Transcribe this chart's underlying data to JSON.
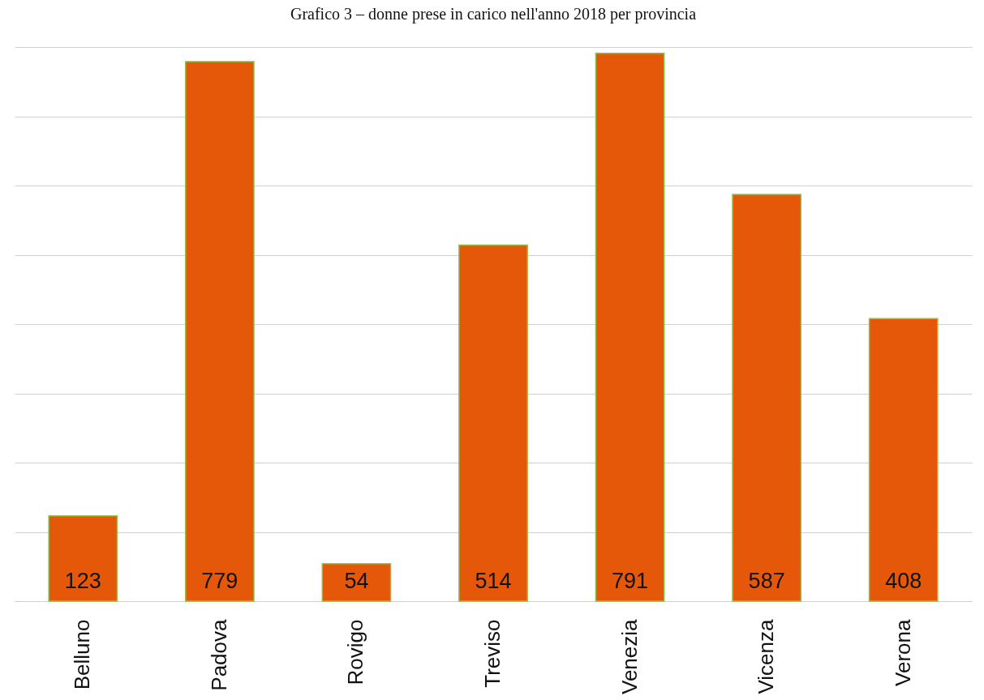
{
  "chart_data": {
    "type": "bar",
    "title": "Grafico 3 – donne prese in carico nell'anno 2018 per provincia",
    "categories": [
      "Belluno",
      "Padova",
      "Rovigo",
      "Treviso",
      "Venezia",
      "Vicenza",
      "Verona"
    ],
    "values": [
      123,
      779,
      54,
      514,
      791,
      587,
      408
    ],
    "color": "#e5580a",
    "data_labels": true,
    "grid": "y",
    "tick_labels": "x",
    "ylim": [
      0,
      800
    ],
    "yticks": [
      {
        "value": 0,
        "label": null
      },
      {
        "value": 100,
        "label": null
      },
      {
        "value": 200,
        "label": null
      },
      {
        "value": 300,
        "label": null
      },
      {
        "value": 400,
        "label": null
      },
      {
        "value": 500,
        "label": null
      },
      {
        "value": 600,
        "label": null
      },
      {
        "value": 700,
        "label": null
      },
      {
        "value": 800,
        "label": null
      }
    ]
  }
}
